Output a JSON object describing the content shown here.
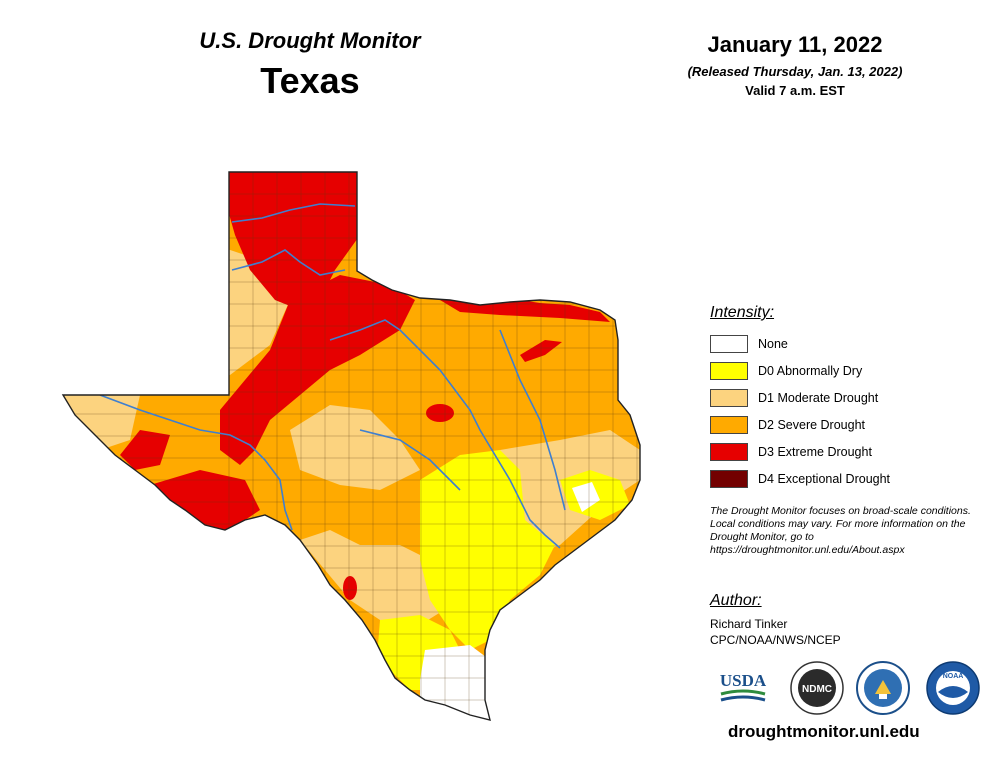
{
  "header": {
    "monitor_title": "U.S. Drought Monitor",
    "state": "Texas",
    "date": "January 11, 2022",
    "released": "(Released Thursday, Jan. 13, 2022)",
    "valid": "Valid 7 a.m. EST"
  },
  "legend": {
    "title": "Intensity:",
    "items": [
      {
        "label": "None",
        "color": "#FFFFFF"
      },
      {
        "label": "D0 Abnormally Dry",
        "color": "#FFFF00"
      },
      {
        "label": "D1 Moderate Drought",
        "color": "#FCD37F"
      },
      {
        "label": "D2 Severe Drought",
        "color": "#FFAA00"
      },
      {
        "label": "D3 Extreme Drought",
        "color": "#E60000"
      },
      {
        "label": "D4 Exceptional Drought",
        "color": "#730000"
      }
    ]
  },
  "note": "The Drought Monitor focuses on broad-scale conditions. Local conditions may vary. For more information on the Drought Monitor, go to https://droughtmonitor.unl.edu/About.aspx",
  "author": {
    "title": "Author:",
    "name": "Richard Tinker",
    "org": "CPC/NOAA/NWS/NCEP"
  },
  "logos": {
    "usda": "USDA",
    "ndmc": "NDMC",
    "commerce": "commerce-seal-icon",
    "noaa": "NOAA"
  },
  "website": "droughtmonitor.unl.edu",
  "colors": {
    "none": "#FFFFFF",
    "d0": "#FFFF00",
    "d1": "#FCD37F",
    "d2": "#FFAA00",
    "d3": "#E60000",
    "d4": "#730000",
    "river": "#3F7FCF",
    "border": "#222222"
  }
}
